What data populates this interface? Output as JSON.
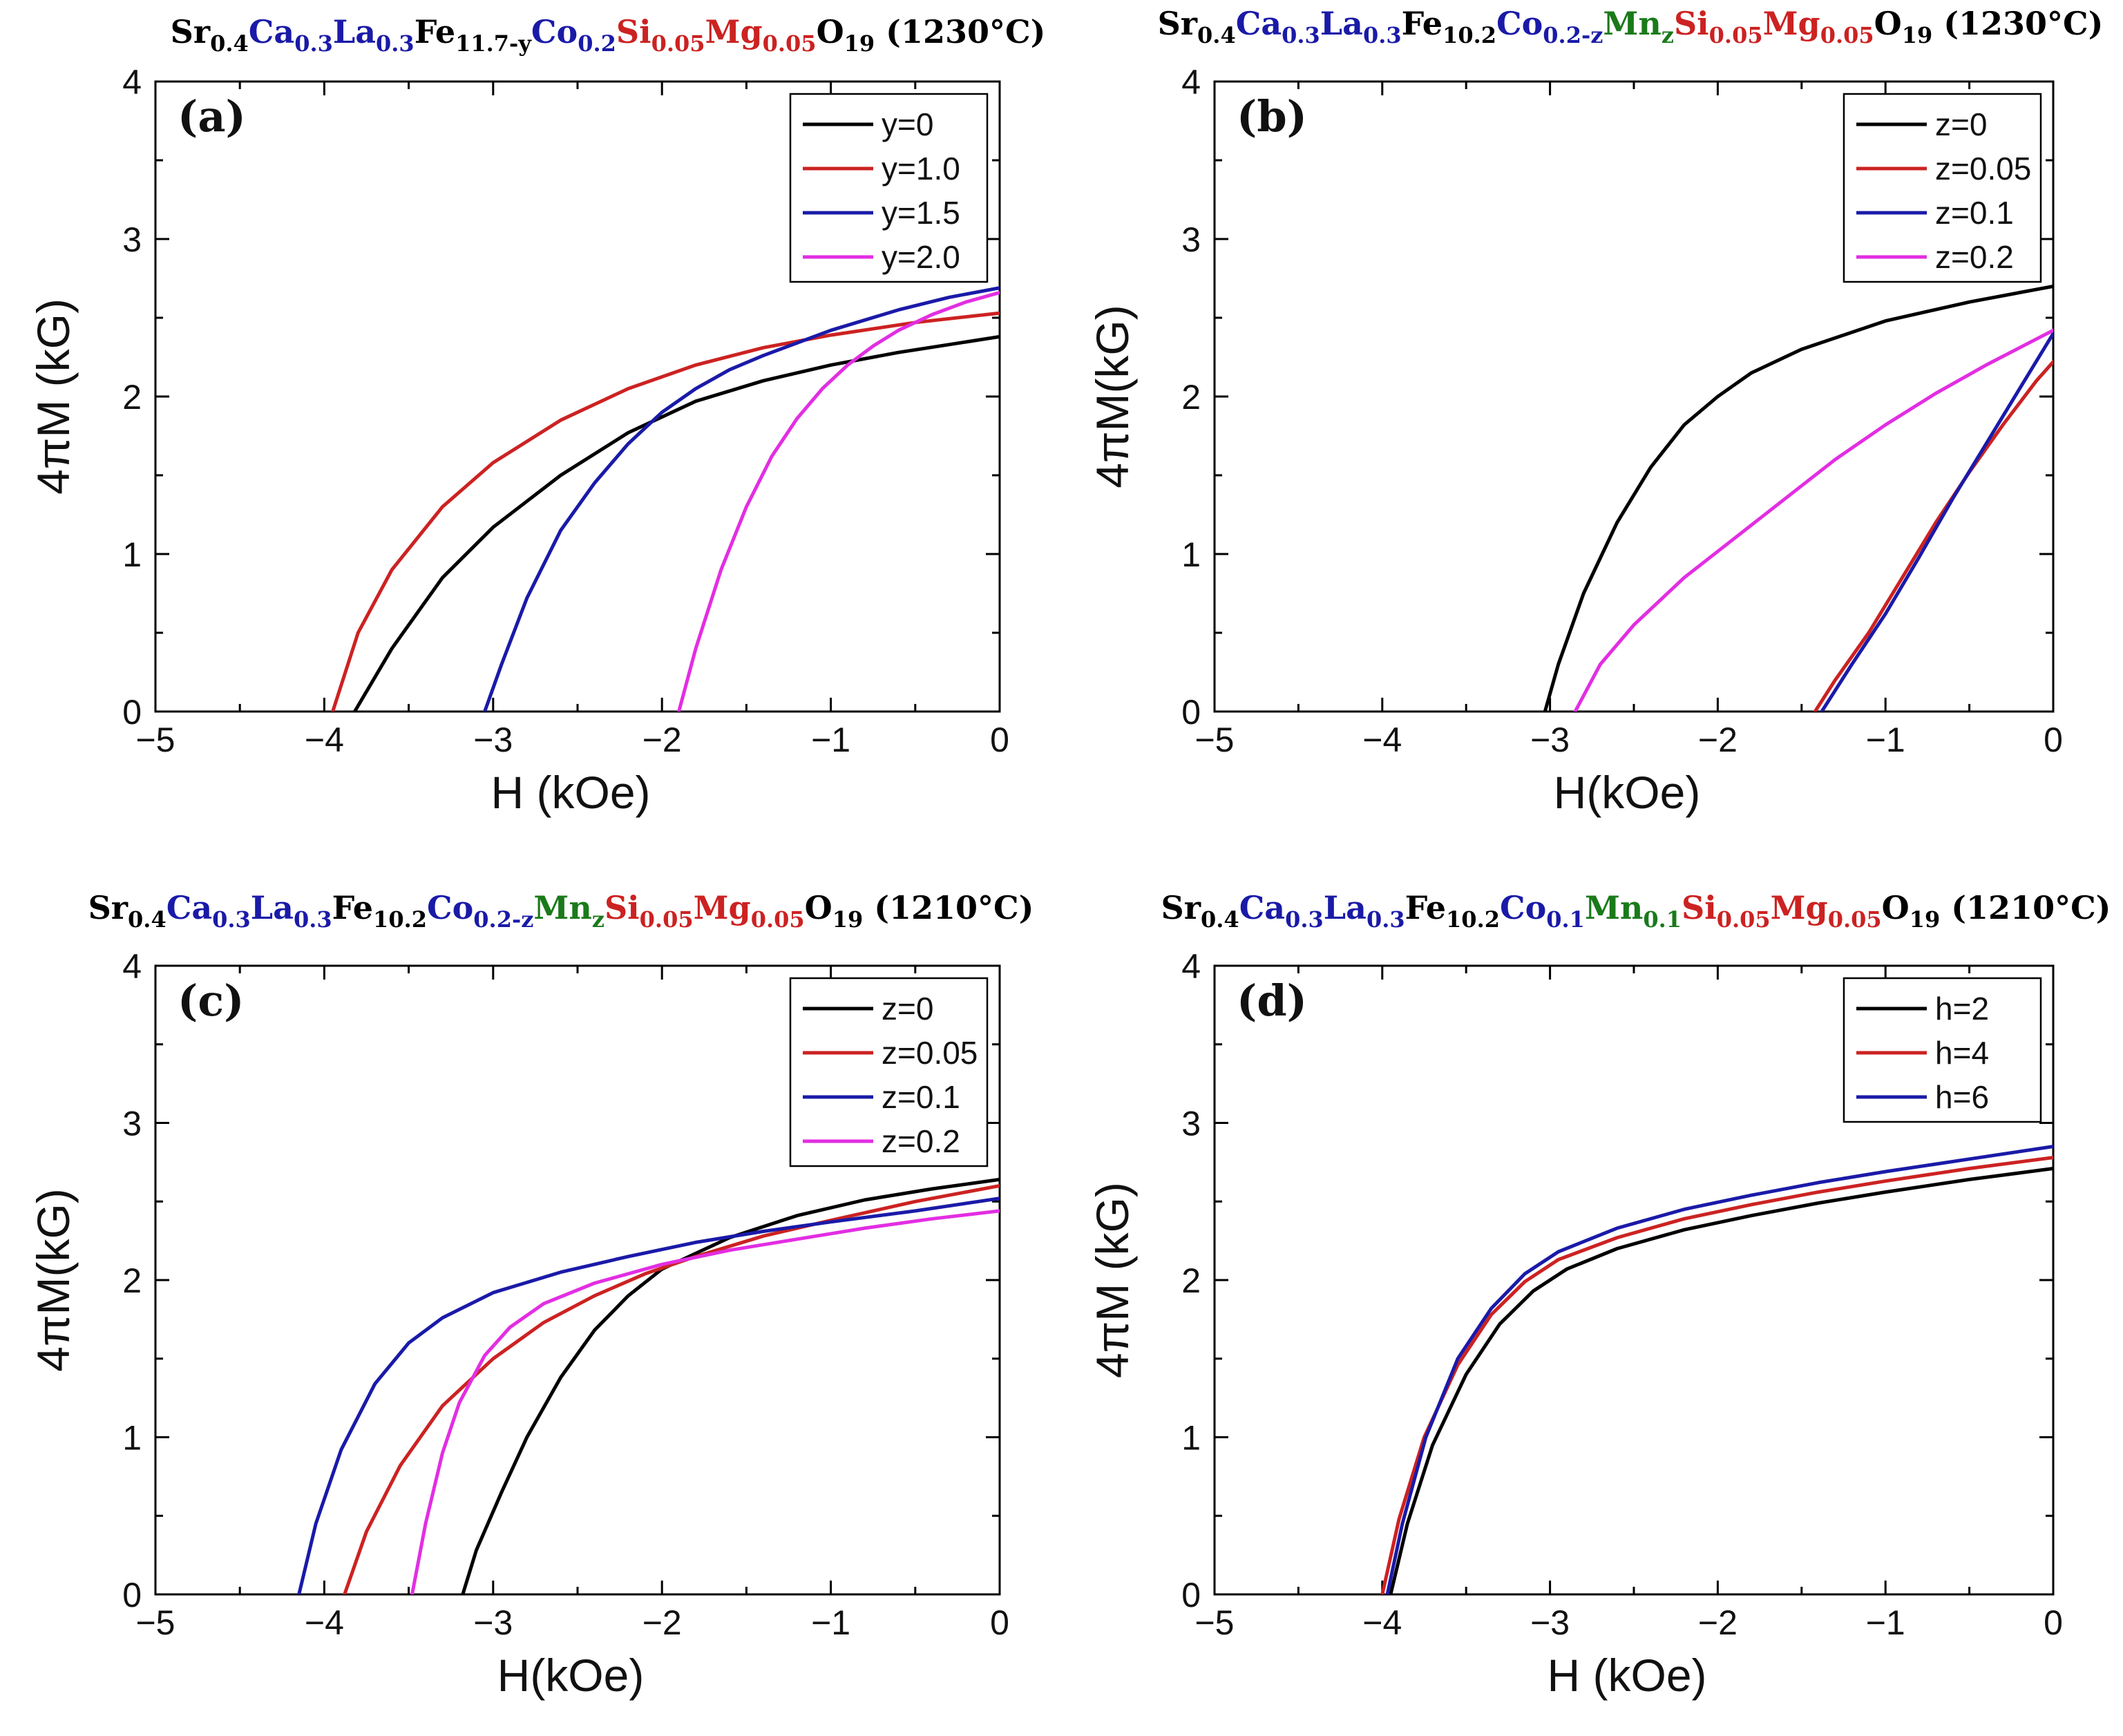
{
  "colors": {
    "black": "#000000",
    "red": "#cc2222",
    "blue": "#1a1aa8",
    "magenta": "#e22ee2",
    "green": "#1a7a1a"
  },
  "chart_data": [
    {
      "type": "line",
      "panel_label": "(a)",
      "title_segments": [
        {
          "t": "Sr",
          "c": "black"
        },
        {
          "t": "0.4",
          "c": "black",
          "sub": true
        },
        {
          "t": "Ca",
          "c": "blue"
        },
        {
          "t": "0.3",
          "c": "blue",
          "sub": true
        },
        {
          "t": "La",
          "c": "blue"
        },
        {
          "t": "0.3",
          "c": "blue",
          "sub": true
        },
        {
          "t": "Fe",
          "c": "black"
        },
        {
          "t": "11.7-y",
          "c": "black",
          "sub": true
        },
        {
          "t": "Co",
          "c": "blue"
        },
        {
          "t": "0.2",
          "c": "blue",
          "sub": true
        },
        {
          "t": "Si",
          "c": "red"
        },
        {
          "t": "0.05",
          "c": "red",
          "sub": true
        },
        {
          "t": "Mg",
          "c": "red"
        },
        {
          "t": "0.05",
          "c": "red",
          "sub": true
        },
        {
          "t": "O",
          "c": "black"
        },
        {
          "t": "19",
          "c": "black",
          "sub": true
        },
        {
          "t": " (1230°C)",
          "c": "black"
        }
      ],
      "xlabel": "H (kOe)",
      "ylabel": "4πM (kG)",
      "xlim": [
        -5,
        0
      ],
      "ylim": [
        0,
        4
      ],
      "xticks": [
        -5,
        -4,
        -3,
        -2,
        -1,
        0
      ],
      "yticks": [
        0,
        1,
        2,
        3,
        4
      ],
      "legend_position": "top-right",
      "series": [
        {
          "name": "y=0",
          "color": "black",
          "x": [
            -3.82,
            -3.6,
            -3.3,
            -3.0,
            -2.6,
            -2.2,
            -1.8,
            -1.4,
            -1.0,
            -0.6,
            -0.3,
            0.0
          ],
          "y": [
            0,
            0.4,
            0.85,
            1.17,
            1.5,
            1.77,
            1.97,
            2.1,
            2.2,
            2.28,
            2.33,
            2.38
          ]
        },
        {
          "name": "y=1.0",
          "color": "red",
          "x": [
            -3.95,
            -3.8,
            -3.6,
            -3.3,
            -3.0,
            -2.6,
            -2.2,
            -1.8,
            -1.4,
            -1.0,
            -0.5,
            0.0
          ],
          "y": [
            0,
            0.5,
            0.9,
            1.3,
            1.58,
            1.85,
            2.05,
            2.2,
            2.31,
            2.39,
            2.47,
            2.53
          ]
        },
        {
          "name": "y=1.5",
          "color": "blue",
          "x": [
            -3.05,
            -2.95,
            -2.8,
            -2.6,
            -2.4,
            -2.2,
            -2.0,
            -1.8,
            -1.6,
            -1.4,
            -1.0,
            -0.6,
            -0.3,
            0.0
          ],
          "y": [
            0,
            0.3,
            0.72,
            1.15,
            1.45,
            1.7,
            1.9,
            2.05,
            2.17,
            2.26,
            2.42,
            2.55,
            2.63,
            2.69
          ]
        },
        {
          "name": "y=2.0",
          "color": "magenta",
          "x": [
            -1.9,
            -1.8,
            -1.65,
            -1.5,
            -1.35,
            -1.2,
            -1.05,
            -0.9,
            -0.75,
            -0.6,
            -0.4,
            -0.2,
            0.0
          ],
          "y": [
            0,
            0.4,
            0.9,
            1.3,
            1.62,
            1.86,
            2.05,
            2.2,
            2.32,
            2.42,
            2.52,
            2.6,
            2.66
          ]
        }
      ]
    },
    {
      "type": "line",
      "panel_label": "(b)",
      "title_segments": [
        {
          "t": "Sr",
          "c": "black"
        },
        {
          "t": "0.4",
          "c": "black",
          "sub": true
        },
        {
          "t": "Ca",
          "c": "blue"
        },
        {
          "t": "0.3",
          "c": "blue",
          "sub": true
        },
        {
          "t": "La",
          "c": "blue"
        },
        {
          "t": "0.3",
          "c": "blue",
          "sub": true
        },
        {
          "t": "Fe",
          "c": "black"
        },
        {
          "t": "10.2",
          "c": "black",
          "sub": true
        },
        {
          "t": "Co",
          "c": "blue"
        },
        {
          "t": "0.2-z",
          "c": "blue",
          "sub": true
        },
        {
          "t": "Mn",
          "c": "green"
        },
        {
          "t": "z",
          "c": "green",
          "sub": true
        },
        {
          "t": "Si",
          "c": "red"
        },
        {
          "t": "0.05",
          "c": "red",
          "sub": true
        },
        {
          "t": "Mg",
          "c": "red"
        },
        {
          "t": "0.05",
          "c": "red",
          "sub": true
        },
        {
          "t": "O",
          "c": "black"
        },
        {
          "t": "19",
          "c": "black",
          "sub": true
        },
        {
          "t": " (1230°C)",
          "c": "black"
        }
      ],
      "xlabel": "H(kOe)",
      "ylabel": "4πM(kG)",
      "xlim": [
        -5,
        0
      ],
      "ylim": [
        0,
        4
      ],
      "xticks": [
        -5,
        -4,
        -3,
        -2,
        -1,
        0
      ],
      "yticks": [
        0,
        1,
        2,
        3,
        4
      ],
      "legend_position": "top-right",
      "series": [
        {
          "name": "z=0",
          "color": "black",
          "x": [
            -3.03,
            -2.95,
            -2.8,
            -2.6,
            -2.4,
            -2.2,
            -2.0,
            -1.8,
            -1.5,
            -1.0,
            -0.5,
            0.0
          ],
          "y": [
            0,
            0.3,
            0.75,
            1.2,
            1.55,
            1.82,
            2.0,
            2.15,
            2.3,
            2.48,
            2.6,
            2.7
          ]
        },
        {
          "name": "z=0.05",
          "color": "red",
          "x": [
            -1.42,
            -1.3,
            -1.1,
            -0.9,
            -0.7,
            -0.5,
            -0.3,
            -0.1,
            0.0
          ],
          "y": [
            0,
            0.2,
            0.5,
            0.85,
            1.2,
            1.52,
            1.82,
            2.1,
            2.22
          ]
        },
        {
          "name": "z=0.1",
          "color": "blue",
          "x": [
            -1.38,
            -1.2,
            -1.0,
            -0.8,
            -0.6,
            -0.4,
            -0.2,
            0.0
          ],
          "y": [
            0,
            0.3,
            0.62,
            0.98,
            1.35,
            1.7,
            2.05,
            2.4
          ]
        },
        {
          "name": "z=0.2",
          "color": "magenta",
          "x": [
            -2.85,
            -2.7,
            -2.5,
            -2.2,
            -1.9,
            -1.6,
            -1.3,
            -1.0,
            -0.7,
            -0.4,
            0.0
          ],
          "y": [
            0,
            0.3,
            0.55,
            0.85,
            1.1,
            1.35,
            1.6,
            1.82,
            2.02,
            2.2,
            2.42
          ]
        }
      ]
    },
    {
      "type": "line",
      "panel_label": "(c)",
      "title_segments": [
        {
          "t": "Sr",
          "c": "black"
        },
        {
          "t": "0.4",
          "c": "black",
          "sub": true
        },
        {
          "t": "Ca",
          "c": "blue"
        },
        {
          "t": "0.3",
          "c": "blue",
          "sub": true
        },
        {
          "t": "La",
          "c": "blue"
        },
        {
          "t": "0.3",
          "c": "blue",
          "sub": true
        },
        {
          "t": "Fe",
          "c": "black"
        },
        {
          "t": "10.2",
          "c": "black",
          "sub": true
        },
        {
          "t": "Co",
          "c": "blue"
        },
        {
          "t": "0.2-z",
          "c": "blue",
          "sub": true
        },
        {
          "t": "Mn",
          "c": "green"
        },
        {
          "t": "z",
          "c": "green",
          "sub": true
        },
        {
          "t": "Si",
          "c": "red"
        },
        {
          "t": "0.05",
          "c": "red",
          "sub": true
        },
        {
          "t": "Mg",
          "c": "red"
        },
        {
          "t": "0.05",
          "c": "red",
          "sub": true
        },
        {
          "t": "O",
          "c": "black"
        },
        {
          "t": "19",
          "c": "black",
          "sub": true
        },
        {
          "t": " (1210°C)",
          "c": "black"
        }
      ],
      "xlabel": "H(kOe)",
      "ylabel": "4πM(kG)",
      "xlim": [
        -5,
        0
      ],
      "ylim": [
        0,
        4
      ],
      "xticks": [
        -5,
        -4,
        -3,
        -2,
        -1,
        0
      ],
      "yticks": [
        0,
        1,
        2,
        3,
        4
      ],
      "legend_position": "top-right",
      "series": [
        {
          "name": "z=0",
          "color": "black",
          "x": [
            -3.18,
            -3.1,
            -2.95,
            -2.8,
            -2.6,
            -2.4,
            -2.2,
            -2.0,
            -1.6,
            -1.2,
            -0.8,
            -0.4,
            0.0
          ],
          "y": [
            0,
            0.28,
            0.65,
            1.0,
            1.38,
            1.68,
            1.9,
            2.07,
            2.27,
            2.41,
            2.51,
            2.58,
            2.64
          ]
        },
        {
          "name": "z=0.05",
          "color": "red",
          "x": [
            -3.88,
            -3.75,
            -3.55,
            -3.3,
            -3.0,
            -2.7,
            -2.4,
            -2.1,
            -1.8,
            -1.4,
            -1.0,
            -0.5,
            0.0
          ],
          "y": [
            0,
            0.4,
            0.82,
            1.2,
            1.5,
            1.73,
            1.9,
            2.04,
            2.15,
            2.28,
            2.38,
            2.5,
            2.6
          ]
        },
        {
          "name": "z=0.1",
          "color": "blue",
          "x": [
            -4.15,
            -4.05,
            -3.9,
            -3.7,
            -3.5,
            -3.3,
            -3.0,
            -2.6,
            -2.2,
            -1.8,
            -1.4,
            -1.0,
            -0.5,
            0.0
          ],
          "y": [
            0,
            0.45,
            0.92,
            1.34,
            1.6,
            1.76,
            1.92,
            2.05,
            2.15,
            2.24,
            2.31,
            2.37,
            2.44,
            2.52
          ]
        },
        {
          "name": "z=0.2",
          "color": "magenta",
          "x": [
            -3.48,
            -3.4,
            -3.3,
            -3.2,
            -3.05,
            -2.9,
            -2.7,
            -2.4,
            -2.0,
            -1.6,
            -1.2,
            -0.8,
            -0.4,
            0.0
          ],
          "y": [
            0,
            0.45,
            0.9,
            1.22,
            1.52,
            1.7,
            1.85,
            1.98,
            2.1,
            2.19,
            2.26,
            2.33,
            2.39,
            2.44
          ]
        }
      ]
    },
    {
      "type": "line",
      "panel_label": "(d)",
      "title_segments": [
        {
          "t": "Sr",
          "c": "black"
        },
        {
          "t": "0.4",
          "c": "black",
          "sub": true
        },
        {
          "t": "Ca",
          "c": "blue"
        },
        {
          "t": "0.3",
          "c": "blue",
          "sub": true
        },
        {
          "t": "La",
          "c": "blue"
        },
        {
          "t": "0.3",
          "c": "blue",
          "sub": true
        },
        {
          "t": "Fe",
          "c": "black"
        },
        {
          "t": "10.2",
          "c": "black",
          "sub": true
        },
        {
          "t": "Co",
          "c": "blue"
        },
        {
          "t": "0.1",
          "c": "blue",
          "sub": true
        },
        {
          "t": "Mn",
          "c": "green"
        },
        {
          "t": "0.1",
          "c": "green",
          "sub": true
        },
        {
          "t": "Si",
          "c": "red"
        },
        {
          "t": "0.05",
          "c": "red",
          "sub": true
        },
        {
          "t": "Mg",
          "c": "red"
        },
        {
          "t": "0.05",
          "c": "red",
          "sub": true
        },
        {
          "t": "O",
          "c": "black"
        },
        {
          "t": "19",
          "c": "black",
          "sub": true
        },
        {
          "t": " (1210°C)",
          "c": "black"
        }
      ],
      "xlabel": "H (kOe)",
      "ylabel": "4πM (kG)",
      "xlim": [
        -5,
        0
      ],
      "ylim": [
        0,
        4
      ],
      "xticks": [
        -5,
        -4,
        -3,
        -2,
        -1,
        0
      ],
      "yticks": [
        0,
        1,
        2,
        3,
        4
      ],
      "legend_position": "top-right",
      "series": [
        {
          "name": "h=2",
          "color": "black",
          "x": [
            -3.95,
            -3.85,
            -3.7,
            -3.5,
            -3.3,
            -3.1,
            -2.9,
            -2.6,
            -2.2,
            -1.8,
            -1.4,
            -1.0,
            -0.5,
            0.0
          ],
          "y": [
            0,
            0.45,
            0.95,
            1.4,
            1.72,
            1.93,
            2.07,
            2.2,
            2.32,
            2.41,
            2.49,
            2.56,
            2.64,
            2.71
          ]
        },
        {
          "name": "h=4",
          "color": "red",
          "x": [
            -4.0,
            -3.9,
            -3.75,
            -3.55,
            -3.35,
            -3.15,
            -2.95,
            -2.6,
            -2.2,
            -1.8,
            -1.4,
            -1.0,
            -0.5,
            0.0
          ],
          "y": [
            0,
            0.48,
            1.0,
            1.46,
            1.78,
            1.99,
            2.13,
            2.27,
            2.39,
            2.48,
            2.56,
            2.63,
            2.71,
            2.78
          ]
        },
        {
          "name": "h=6",
          "color": "blue",
          "x": [
            -3.97,
            -3.88,
            -3.74,
            -3.55,
            -3.35,
            -3.15,
            -2.95,
            -2.6,
            -2.2,
            -1.8,
            -1.4,
            -1.0,
            -0.5,
            0.0
          ],
          "y": [
            0,
            0.45,
            1.0,
            1.5,
            1.82,
            2.04,
            2.18,
            2.33,
            2.45,
            2.54,
            2.62,
            2.69,
            2.77,
            2.85
          ]
        }
      ]
    }
  ]
}
